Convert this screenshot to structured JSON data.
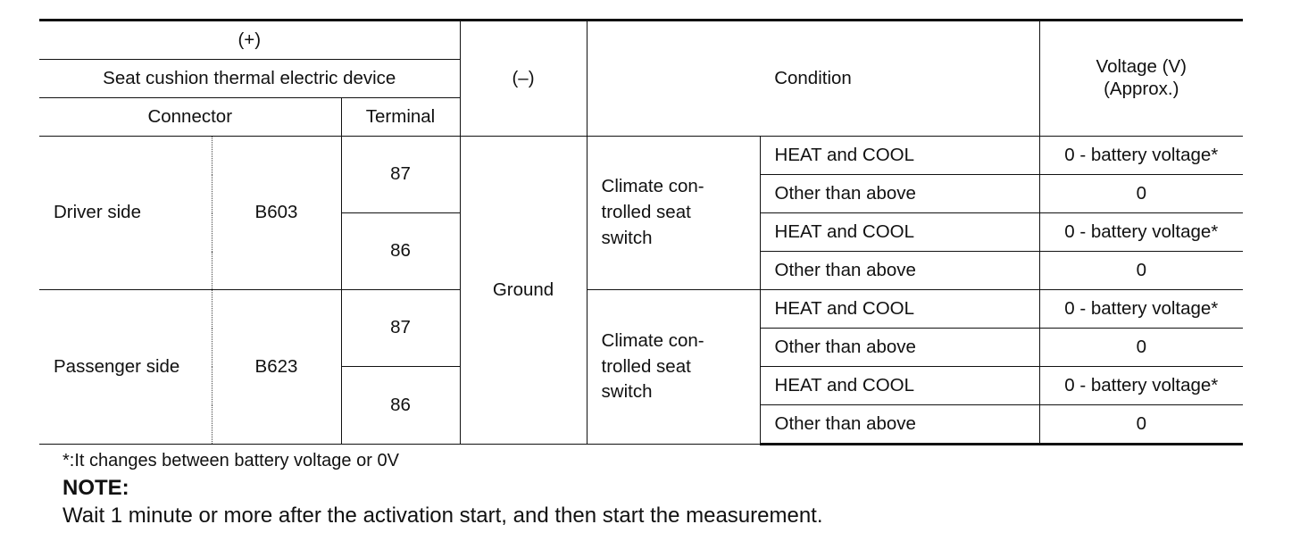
{
  "table": {
    "header": {
      "plus": "(+)",
      "device": "Seat cushion thermal electric device",
      "connector": "Connector",
      "terminal": "Terminal",
      "minus": "(–)",
      "condition": "Condition",
      "voltage_line1": "Voltage (V)",
      "voltage_line2": "(Approx.)"
    },
    "ground": "Ground",
    "groups": [
      {
        "side": "Driver side",
        "connector": "B603",
        "switch_label": "Climate con-\ntrolled seat\nswitch",
        "terminals": [
          {
            "terminal": "87",
            "rows": [
              {
                "condition": "HEAT and COOL",
                "voltage": "0 - battery voltage*"
              },
              {
                "condition": "Other than above",
                "voltage": "0"
              }
            ]
          },
          {
            "terminal": "86",
            "rows": [
              {
                "condition": "HEAT and COOL",
                "voltage": "0 - battery voltage*"
              },
              {
                "condition": "Other than above",
                "voltage": "0"
              }
            ]
          }
        ]
      },
      {
        "side": "Passenger side",
        "connector": "B623",
        "switch_label": "Climate con-\ntrolled seat\nswitch",
        "terminals": [
          {
            "terminal": "87",
            "rows": [
              {
                "condition": "HEAT and COOL",
                "voltage": "0 - battery voltage*"
              },
              {
                "condition": "Other than above",
                "voltage": "0"
              }
            ]
          },
          {
            "terminal": "86",
            "rows": [
              {
                "condition": "HEAT and COOL",
                "voltage": "0 - battery voltage*"
              },
              {
                "condition": "Other than above",
                "voltage": "0"
              }
            ]
          }
        ]
      }
    ]
  },
  "footnote": "*:It changes between battery voltage or 0V",
  "note": {
    "title": "NOTE:",
    "text": "Wait 1 minute or more after the activation start, and then start the measurement."
  }
}
